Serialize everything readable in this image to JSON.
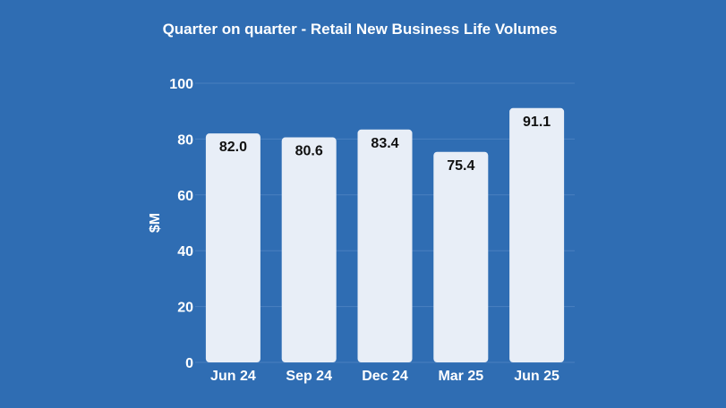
{
  "chart_data": {
    "type": "bar",
    "title": "Quarter on quarter -  Retail New Business Life Volumes",
    "xlabel": "",
    "ylabel": "$M",
    "categories": [
      "Jun 24",
      "Sep 24",
      "Dec 24",
      "Mar 25",
      "Jun 25"
    ],
    "values": [
      82.0,
      80.6,
      83.4,
      75.4,
      91.1
    ],
    "data_labels": [
      "82.0",
      "80.6",
      "83.4",
      "75.4",
      "91.1"
    ],
    "ylim": [
      0,
      100
    ],
    "yticks": [
      0,
      20,
      40,
      60,
      80,
      100
    ],
    "grid": true,
    "legend": "none",
    "colors": {
      "background": "#2f6db3",
      "bar": "#e8eef7",
      "text": "#ffffff",
      "data_label": "#111111"
    }
  }
}
